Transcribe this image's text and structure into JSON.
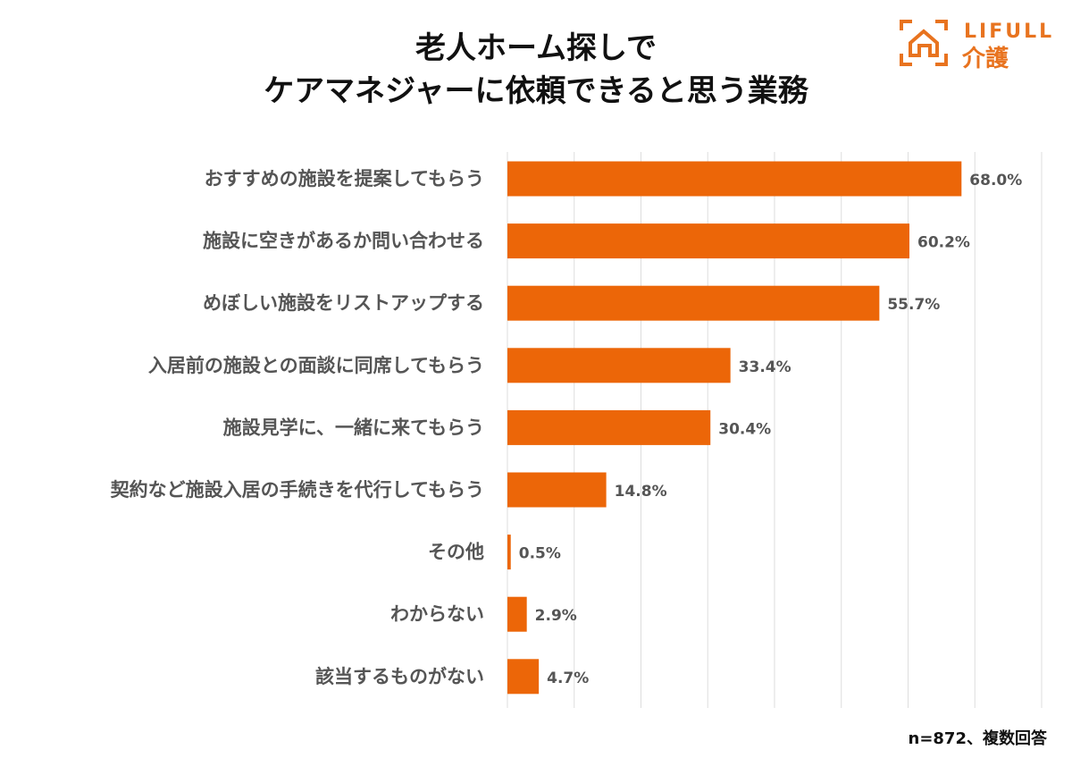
{
  "title_lines": [
    "老人ホーム探しで",
    "ケアマネジャーに依頼できると思う業務"
  ],
  "logo": {
    "text_top": "LIFULL",
    "text_bottom": "介護",
    "icon": "house-in-frame-icon",
    "color": "#E8731F"
  },
  "note": "n=872、複数回答",
  "chart_data": {
    "type": "bar",
    "orientation": "horizontal",
    "categories": [
      "おすすめの施設を提案してもらう",
      "施設に空きがあるか問い合わせる",
      "めぼしい施設をリストアップする",
      "入居前の施設との面談に同席してもらう",
      "施設見学に、一緒に来てもらう",
      "契約など施設入居の手続きを代行してもらう",
      "その他",
      "わからない",
      "該当するものがない"
    ],
    "values": [
      68.0,
      60.2,
      55.7,
      33.4,
      30.4,
      14.8,
      0.5,
      2.9,
      4.7
    ],
    "value_labels": [
      "68.0%",
      "60.2%",
      "55.7%",
      "33.4%",
      "30.4%",
      "14.8%",
      "0.5%",
      "2.9%",
      "4.7%"
    ],
    "xlim": [
      0,
      80
    ],
    "grid": true,
    "bar_color": "#EC6608",
    "unit": "%"
  }
}
